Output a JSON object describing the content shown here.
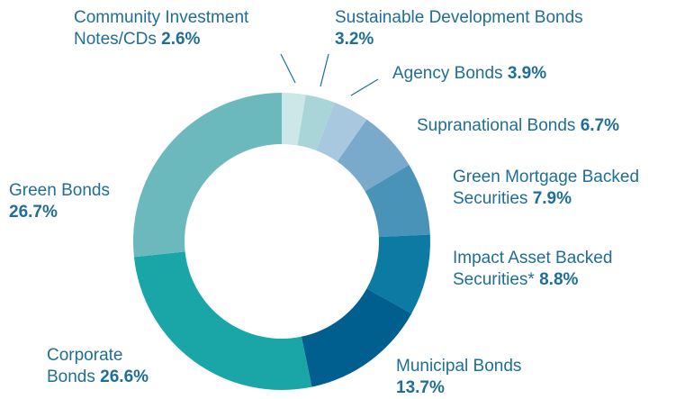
{
  "chart_data": {
    "type": "donut",
    "categories": [
      "Community Investment Notes/CDs",
      "Sustainable Development Bonds",
      "Agency Bonds",
      "Supranational Bonds",
      "Green Mortgage Backed Securities",
      "Impact Asset Backed Securities*",
      "Municipal Bonds",
      "Corporate Bonds",
      "Green Bonds"
    ],
    "values": [
      2.6,
      3.2,
      3.9,
      6.7,
      7.9,
      8.8,
      13.7,
      26.6,
      26.7
    ],
    "value_labels": [
      "2.6%",
      "3.2%",
      "3.9%",
      "6.7%",
      "7.9%",
      "8.8%",
      "13.7%",
      "26.6%",
      "26.7%"
    ],
    "colors": [
      "#cde6e8",
      "#a9d5d8",
      "#a8c8e0",
      "#7aaacb",
      "#4a93b8",
      "#0d7aa3",
      "#005f8e",
      "#1aa6a6",
      "#6bb8bd"
    ]
  }
}
